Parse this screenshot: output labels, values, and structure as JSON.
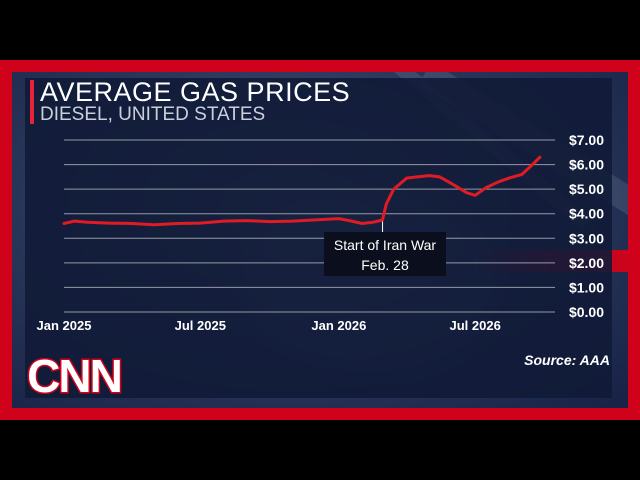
{
  "chart_data": {
    "type": "line",
    "title": "AVERAGE GAS PRICES",
    "subtitle": "DIESEL, UNITED STATES",
    "x_ticks": [
      "Jan 2025",
      "Jul 2025",
      "Jan 2026",
      "Jul 2026"
    ],
    "y_ticks": [
      "$7.00",
      "$6.00",
      "$5.00",
      "$4.00",
      "$3.00",
      "$2.00",
      "$1.00",
      "$0.00"
    ],
    "ylim": [
      0,
      7
    ],
    "grid": true,
    "series": [
      {
        "color": "#e01b24",
        "points": [
          [
            "2025-01-01",
            3.6
          ],
          [
            "2025-01-15",
            3.7
          ],
          [
            "2025-02-01",
            3.65
          ],
          [
            "2025-03-01",
            3.62
          ],
          [
            "2025-04-01",
            3.6
          ],
          [
            "2025-05-01",
            3.55
          ],
          [
            "2025-06-01",
            3.6
          ],
          [
            "2025-07-01",
            3.62
          ],
          [
            "2025-08-01",
            3.7
          ],
          [
            "2025-09-01",
            3.72
          ],
          [
            "2025-10-01",
            3.68
          ],
          [
            "2025-11-01",
            3.7
          ],
          [
            "2025-12-01",
            3.75
          ],
          [
            "2026-01-01",
            3.8
          ],
          [
            "2026-01-15",
            3.72
          ],
          [
            "2026-02-01",
            3.6
          ],
          [
            "2026-02-15",
            3.65
          ],
          [
            "2026-02-28",
            3.75
          ],
          [
            "2026-03-05",
            4.4
          ],
          [
            "2026-03-15",
            5.0
          ],
          [
            "2026-04-01",
            5.45
          ],
          [
            "2026-04-15",
            5.5
          ],
          [
            "2026-05-01",
            5.55
          ],
          [
            "2026-05-15",
            5.5
          ],
          [
            "2026-06-01",
            5.2
          ],
          [
            "2026-06-20",
            4.85
          ],
          [
            "2026-07-01",
            4.75
          ],
          [
            "2026-07-15",
            5.05
          ],
          [
            "2026-08-01",
            5.3
          ],
          [
            "2026-08-15",
            5.45
          ],
          [
            "2026-09-01",
            5.6
          ],
          [
            "2026-09-15",
            6.0
          ],
          [
            "2026-09-25",
            6.3
          ]
        ]
      }
    ],
    "annotation": {
      "lines": [
        "Start of Iran War",
        "Feb. 28"
      ],
      "date": "2026-02-28"
    },
    "source": "Source: AAA"
  },
  "branding": {
    "logo": "CNN",
    "colors": {
      "accent": "#d0021b",
      "line": "#e01b24"
    }
  }
}
